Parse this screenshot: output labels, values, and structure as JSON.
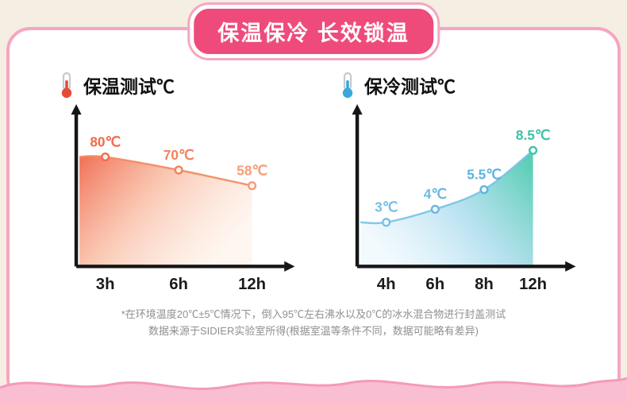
{
  "badge": {
    "title": "保温保冷 长效锁温"
  },
  "theme": {
    "background": "#f4eee3",
    "card_bg": "#ffffff",
    "card_border": "#f6a6c1",
    "badge_bg": "#ee4b7b",
    "badge_text": "#ffffff",
    "axis_color": "#161616",
    "wave_fill": "#f9bed1",
    "wave_stroke": "#f59ab8",
    "footnote_color": "#8f8f8f",
    "hot_icon_color": "#e84a38",
    "cold_icon_color": "#38a8dc"
  },
  "icons": [
    "thermometer-hot-icon",
    "thermometer-cold-icon"
  ],
  "chart_data": [
    {
      "type": "area",
      "title": "保温测试℃",
      "icon": "thermometer-hot-icon",
      "categories": [
        "3h",
        "6h",
        "12h"
      ],
      "values": [
        80,
        70,
        58
      ],
      "point_labels": [
        "80℃",
        "70℃",
        "58℃"
      ],
      "label_colors": [
        "#f26a4a",
        "#f4825c",
        "#f79c78"
      ],
      "line_color": "#f08a5f",
      "xlabel": "",
      "ylabel": "",
      "ylim": [
        0,
        100
      ],
      "legend": false,
      "gradient": {
        "x1": 0,
        "y1": 0,
        "x2": 1,
        "y2": 0.55,
        "stops": [
          {
            "offset": 0,
            "color": "#ef5f43",
            "opacity": 0.9
          },
          {
            "offset": 0.5,
            "color": "#f69a73",
            "opacity": 0.5
          },
          {
            "offset": 1,
            "color": "#fcd9c2",
            "opacity": 0.25
          }
        ]
      }
    },
    {
      "type": "area",
      "title": "保冷测试℃",
      "icon": "thermometer-cold-icon",
      "categories": [
        "4h",
        "6h",
        "8h",
        "12h"
      ],
      "values": [
        3,
        4,
        5.5,
        8.5
      ],
      "point_labels": [
        "3℃",
        "4℃",
        "5.5℃",
        "8.5℃"
      ],
      "label_colors": [
        "#79c0e6",
        "#6cb9e2",
        "#5fb3de",
        "#3fc3a6"
      ],
      "line_color": "#74c3e6",
      "xlabel": "",
      "ylabel": "",
      "ylim": [
        0,
        10
      ],
      "legend": false,
      "gradient": {
        "x1": 0,
        "y1": 0.7,
        "x2": 1,
        "y2": 0.15,
        "stops": [
          {
            "offset": 0,
            "color": "#ddf1fb",
            "opacity": 0.35
          },
          {
            "offset": 0.5,
            "color": "#8fd0e8",
            "opacity": 0.6
          },
          {
            "offset": 1,
            "color": "#3ec6a8",
            "opacity": 0.85
          }
        ]
      }
    }
  ],
  "footnote": {
    "line1": "*在环境温度20℃±5℃情况下，倒入95℃左右沸水以及0℃的冰水混合物进行封盖测试",
    "line2": "数据来源于SIDIER实验室所得(根据室温等条件不同，数据可能略有差异)"
  }
}
